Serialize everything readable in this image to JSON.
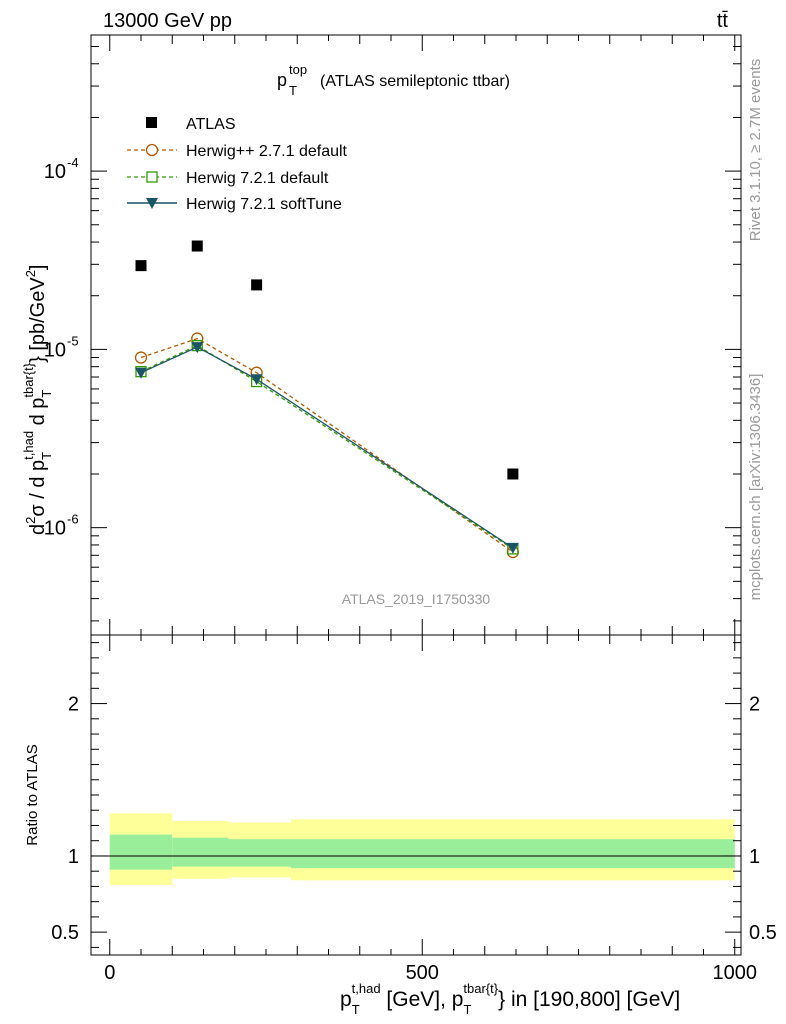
{
  "header": {
    "left": "13000 GeV pp",
    "right": "tt̄"
  },
  "side_labels": {
    "rivet": "Rivet 3.1.10, ≥ 2.7M events",
    "site": "mcplots.cern.ch [arXiv:1306.3436]"
  },
  "chart_data": {
    "type": "scatter",
    "title": {
      "main": "p",
      "sub": "T",
      "sup": "top",
      "rest": "(ATLAS semileptonic ttbar)"
    },
    "watermark": "ATLAS_2019_I1750330",
    "x": [
      50,
      140,
      235,
      645
    ],
    "xlim": [
      -30,
      1010
    ],
    "xticks": [
      0,
      500,
      1000
    ],
    "xtick_labels": [
      "0",
      "500",
      "1000"
    ],
    "ylim": [
      2.5e-07,
      0.00058
    ],
    "ytick_labels": [
      "10",
      "10",
      "10"
    ],
    "ytick_exps": [
      "-6",
      "-5",
      "-4"
    ],
    "ytick_values": [
      1e-06,
      1e-05,
      0.0001
    ],
    "ylabel": "d²σ / d p_T^{t,had} d p_T^{tbar{t}} [pb/GeV²]",
    "xlabel": "p_T^{t,had} [GeV], p_T^{tbar{t}} in [190,800] [GeV]",
    "series": [
      {
        "name": "ATLAS",
        "values": [
          2.95e-05,
          3.8e-05,
          2.3e-05,
          2e-06
        ],
        "color": "#000000",
        "marker": "square"
      },
      {
        "name": "Herwig++ 2.7.1 default",
        "values": [
          9e-06,
          1.15e-05,
          7.4e-06,
          7.3e-07
        ],
        "color": "#b35900",
        "marker": "circle"
      },
      {
        "name": "Herwig 7.2.1 default",
        "values": [
          7.5e-06,
          1.05e-05,
          6.6e-06,
          7.6e-07
        ],
        "color": "#339900",
        "marker": "square-open"
      },
      {
        "name": "Herwig 7.2.1 softTune",
        "values": [
          7.4e-06,
          1.03e-05,
          6.8e-06,
          7.7e-07
        ],
        "color": "#1a5566",
        "marker": "triangle-down"
      }
    ],
    "ratio": {
      "ylabel": "Ratio to ATLAS",
      "ylim": [
        0.35,
        2.45
      ],
      "ytick_values": [
        0.5,
        1,
        2
      ],
      "ytick_labels": [
        "0.5",
        "1",
        "2"
      ],
      "bins": [
        0,
        100,
        190,
        290,
        1000
      ],
      "inner_lo": [
        0.91,
        0.93,
        0.93,
        0.92
      ],
      "inner_hi": [
        1.14,
        1.12,
        1.11,
        1.11
      ],
      "outer_lo": [
        0.81,
        0.85,
        0.86,
        0.84
      ],
      "outer_hi": [
        1.28,
        1.23,
        1.22,
        1.24
      ],
      "inner_color": "#99ee99",
      "outer_color": "#ffff99"
    }
  }
}
